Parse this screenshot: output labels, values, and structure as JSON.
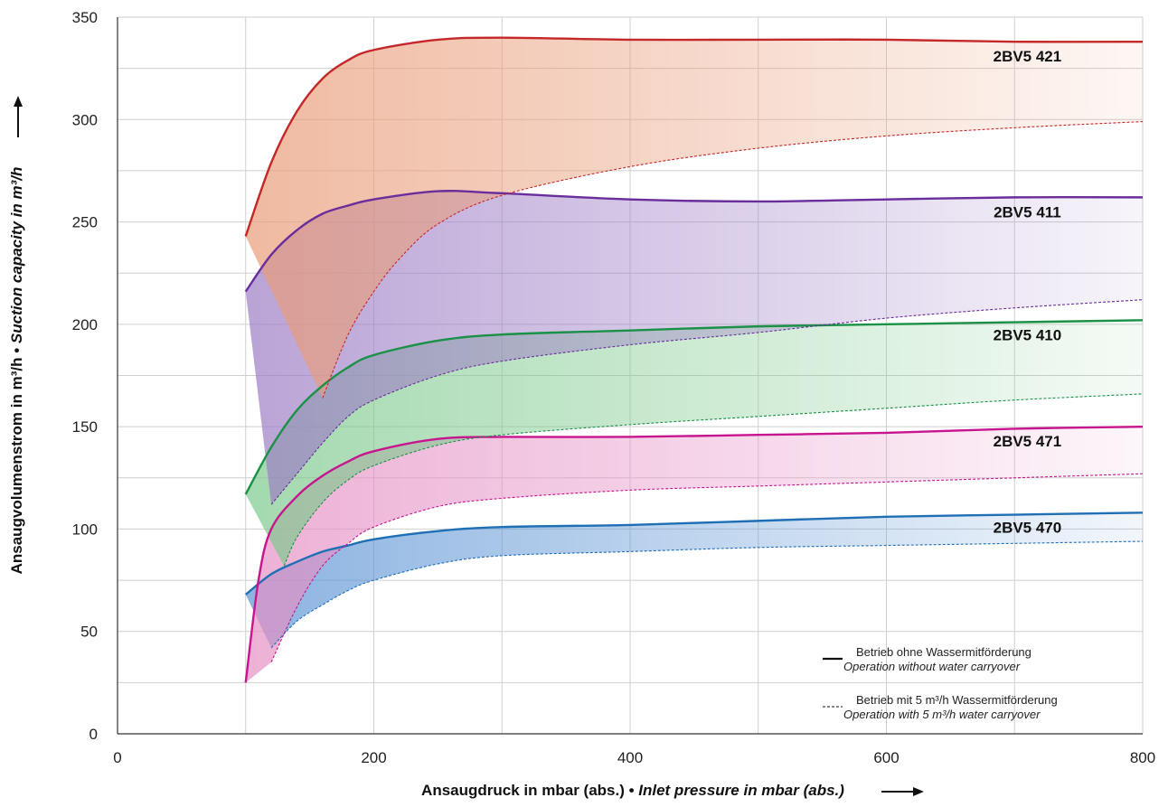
{
  "chart_data": {
    "type": "area",
    "xlabel_de": "Ansaugdruck in mbar (abs.) • ",
    "xlabel_en": "Inlet pressure in mbar (abs.)",
    "ylabel_de": "Ansaugvolumenstrom in m³/h • ",
    "ylabel_en": "Suction capacity in m³/h",
    "xlim": [
      0,
      800
    ],
    "ylim": [
      0,
      350
    ],
    "x_ticks": [
      0,
      200,
      400,
      600,
      800
    ],
    "y_ticks": [
      0,
      50,
      100,
      150,
      200,
      250,
      300,
      350
    ],
    "grid": true,
    "legend_position": "bottom-right",
    "legend": {
      "solid_de": "Betrieb ohne Wassermitförderung",
      "solid_en": "Operation without water carryover",
      "dashed_de": "Betrieb mit 5 m³/h Wassermitförderung",
      "dashed_en": "Operation with 5 m³/h water carryover"
    },
    "series": [
      {
        "name": "2BV5 470",
        "color": "#1f6fb5",
        "fill": "#5b93d4",
        "without_water": [
          [
            100,
            68
          ],
          [
            120,
            78
          ],
          [
            140,
            84
          ],
          [
            160,
            89
          ],
          [
            180,
            92
          ],
          [
            200,
            95
          ],
          [
            250,
            99
          ],
          [
            300,
            101
          ],
          [
            400,
            102
          ],
          [
            500,
            104
          ],
          [
            600,
            106
          ],
          [
            700,
            107
          ],
          [
            800,
            108
          ]
        ],
        "with_water": [
          [
            120,
            42
          ],
          [
            140,
            55
          ],
          [
            160,
            63
          ],
          [
            180,
            70
          ],
          [
            200,
            75
          ],
          [
            250,
            83
          ],
          [
            300,
            87
          ],
          [
            400,
            89
          ],
          [
            500,
            91
          ],
          [
            600,
            92
          ],
          [
            700,
            93
          ],
          [
            800,
            94
          ]
        ]
      },
      {
        "name": "2BV5 471",
        "color": "#c7148f",
        "fill": "#e58fc4",
        "without_water": [
          [
            100,
            25
          ],
          [
            110,
            75
          ],
          [
            120,
            100
          ],
          [
            140,
            116
          ],
          [
            160,
            126
          ],
          [
            180,
            133
          ],
          [
            200,
            138
          ],
          [
            250,
            144
          ],
          [
            300,
            145
          ],
          [
            400,
            145
          ],
          [
            500,
            146
          ],
          [
            600,
            147
          ],
          [
            700,
            149
          ],
          [
            800,
            150
          ]
        ],
        "with_water": [
          [
            120,
            35
          ],
          [
            140,
            62
          ],
          [
            160,
            82
          ],
          [
            180,
            93
          ],
          [
            200,
            101
          ],
          [
            250,
            111
          ],
          [
            300,
            115
          ],
          [
            400,
            119
          ],
          [
            500,
            121
          ],
          [
            600,
            123
          ],
          [
            700,
            125
          ],
          [
            800,
            127
          ]
        ]
      },
      {
        "name": "2BV5 410",
        "color": "#1a9146",
        "fill": "#7cc98c",
        "without_water": [
          [
            100,
            117
          ],
          [
            120,
            140
          ],
          [
            140,
            158
          ],
          [
            160,
            170
          ],
          [
            180,
            179
          ],
          [
            200,
            185
          ],
          [
            250,
            192
          ],
          [
            300,
            195
          ],
          [
            400,
            197
          ],
          [
            500,
            199
          ],
          [
            600,
            200
          ],
          [
            700,
            201
          ],
          [
            800,
            202
          ]
        ],
        "with_water": [
          [
            130,
            82
          ],
          [
            140,
            96
          ],
          [
            160,
            113
          ],
          [
            180,
            124
          ],
          [
            200,
            131
          ],
          [
            250,
            141
          ],
          [
            300,
            146
          ],
          [
            400,
            151
          ],
          [
            500,
            155
          ],
          [
            600,
            159
          ],
          [
            700,
            163
          ],
          [
            800,
            166
          ]
        ]
      },
      {
        "name": "2BV5 411",
        "color": "#6a2e9c",
        "fill": "#9c7cc5",
        "without_water": [
          [
            100,
            216
          ],
          [
            120,
            234
          ],
          [
            140,
            246
          ],
          [
            160,
            254
          ],
          [
            180,
            258
          ],
          [
            200,
            261
          ],
          [
            250,
            265
          ],
          [
            300,
            264
          ],
          [
            400,
            261
          ],
          [
            500,
            260
          ],
          [
            600,
            261
          ],
          [
            700,
            262
          ],
          [
            800,
            262
          ]
        ],
        "with_water": [
          [
            120,
            112
          ],
          [
            140,
            127
          ],
          [
            160,
            142
          ],
          [
            180,
            155
          ],
          [
            200,
            163
          ],
          [
            250,
            175
          ],
          [
            300,
            182
          ],
          [
            400,
            190
          ],
          [
            500,
            196
          ],
          [
            600,
            203
          ],
          [
            700,
            208
          ],
          [
            800,
            212
          ]
        ]
      },
      {
        "name": "2BV5 421",
        "color": "#c42828",
        "fill": "#e99c78",
        "without_water": [
          [
            100,
            243
          ],
          [
            120,
            279
          ],
          [
            140,
            304
          ],
          [
            160,
            320
          ],
          [
            180,
            329
          ],
          [
            200,
            334
          ],
          [
            250,
            339
          ],
          [
            300,
            340
          ],
          [
            400,
            339
          ],
          [
            500,
            339
          ],
          [
            600,
            339
          ],
          [
            700,
            338
          ],
          [
            800,
            338
          ]
        ],
        "with_water": [
          [
            160,
            164
          ],
          [
            180,
            195
          ],
          [
            200,
            216
          ],
          [
            220,
            232
          ],
          [
            250,
            249
          ],
          [
            300,
            263
          ],
          [
            400,
            277
          ],
          [
            500,
            286
          ],
          [
            600,
            292
          ],
          [
            700,
            296
          ],
          [
            800,
            299
          ]
        ]
      }
    ]
  }
}
